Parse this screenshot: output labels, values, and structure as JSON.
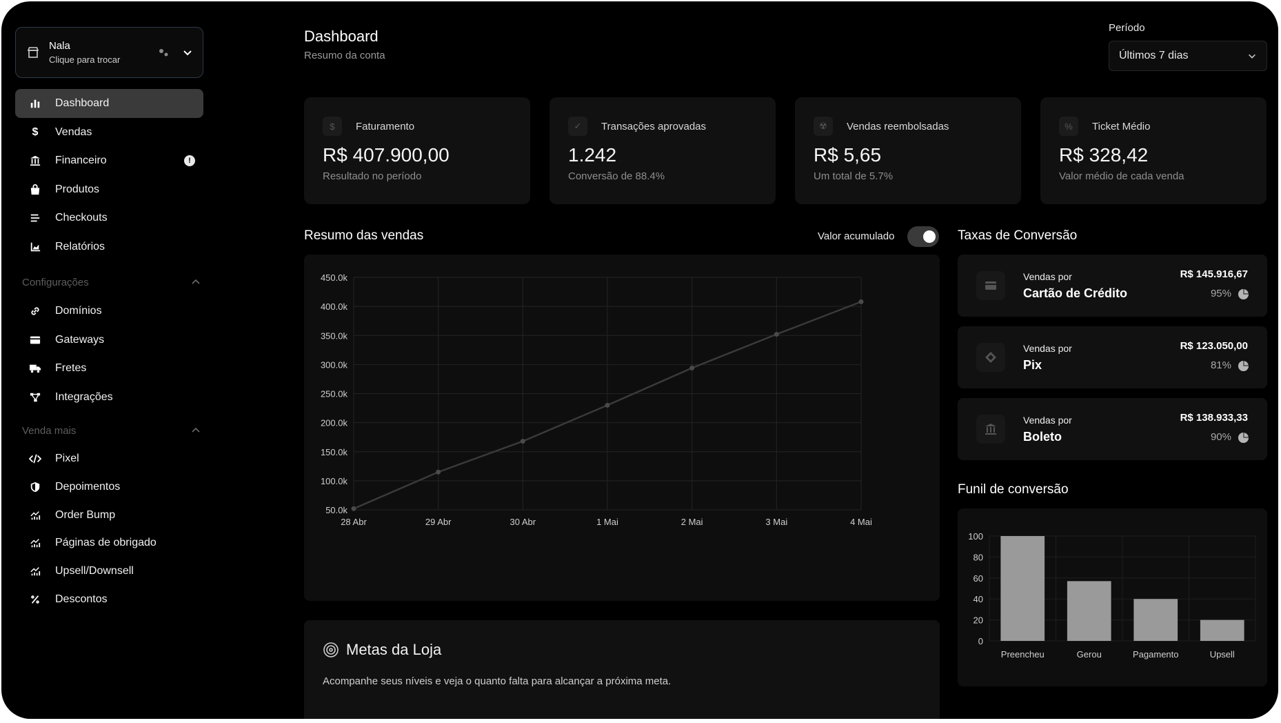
{
  "store": {
    "name": "Nala",
    "hint": "Clique para trocar"
  },
  "nav": {
    "main": [
      {
        "label": "Dashboard",
        "icon": "bar-chart-icon",
        "active": true
      },
      {
        "label": "Vendas",
        "icon": "dollar-icon"
      },
      {
        "label": "Financeiro",
        "icon": "bank-icon",
        "badge": "!"
      },
      {
        "label": "Produtos",
        "icon": "bag-icon"
      },
      {
        "label": "Checkouts",
        "icon": "list-icon"
      },
      {
        "label": "Relatórios",
        "icon": "area-chart-icon"
      }
    ],
    "config_title": "Configurações",
    "config": [
      {
        "label": "Domínios",
        "icon": "link-icon"
      },
      {
        "label": "Gateways",
        "icon": "card-icon"
      },
      {
        "label": "Fretes",
        "icon": "truck-icon"
      },
      {
        "label": "Integrações",
        "icon": "integration-icon"
      }
    ],
    "sell_title": "Venda mais",
    "sell": [
      {
        "label": "Pixel",
        "icon": "code-icon"
      },
      {
        "label": "Depoimentos",
        "icon": "shield-icon"
      },
      {
        "label": "Order Bump",
        "icon": "growth-icon"
      },
      {
        "label": "Páginas de obrigado",
        "icon": "growth-icon"
      },
      {
        "label": "Upsell/Downsell",
        "icon": "growth-icon"
      },
      {
        "label": "Descontos",
        "icon": "percent-icon"
      }
    ]
  },
  "header": {
    "title": "Dashboard",
    "subtitle": "Resumo da conta"
  },
  "period": {
    "label": "Período",
    "value": "Últimos 7 dias"
  },
  "stats": [
    {
      "label": "Faturamento",
      "value": "R$ 407.900,00",
      "sub": "Resultado no período",
      "icon": "$"
    },
    {
      "label": "Transações aprovadas",
      "value": "1.242",
      "sub": "Conversão de 88.4%",
      "icon": "✓"
    },
    {
      "label": "Vendas reembolsadas",
      "value": "R$ 5,65",
      "sub": "Um total de 5.7%",
      "icon": "☢"
    },
    {
      "label": "Ticket Médio",
      "value": "R$ 328,42",
      "sub": "Valor médio de cada venda",
      "icon": "%"
    }
  ],
  "sales_summary": {
    "title": "Resumo das vendas",
    "toggle_label": "Valor acumulado",
    "toggle_on": true
  },
  "chart_data": [
    {
      "type": "line",
      "categories": [
        "28 Abr",
        "29 Abr",
        "30 Abr",
        "1 Mai",
        "2 Mai",
        "3 Mai",
        "4 Mai"
      ],
      "values": [
        52000,
        115000,
        168000,
        230000,
        294000,
        352000,
        408000
      ],
      "ylim": [
        50000,
        450000
      ],
      "yticks": [
        "50.0k",
        "100.0k",
        "150.0k",
        "200.0k",
        "250.0k",
        "300.0k",
        "350.0k",
        "400.0k",
        "450.0k"
      ],
      "grid": true
    },
    {
      "type": "bar",
      "categories": [
        "Preencheu",
        "Gerou",
        "Pagamento",
        "Upsell"
      ],
      "values": [
        100,
        57,
        40,
        20
      ],
      "ylim": [
        0,
        100
      ],
      "yticks": [
        "0",
        "20",
        "40",
        "60",
        "80",
        "100"
      ],
      "grid": true
    }
  ],
  "conversion": {
    "title": "Taxas de Conversão",
    "items": [
      {
        "label": "Vendas por",
        "method": "Cartão de Crédito",
        "amount": "R$ 145.916,67",
        "pct": "95%",
        "icon": "card-icon"
      },
      {
        "label": "Vendas por",
        "method": "Pix",
        "amount": "R$ 123.050,00",
        "pct": "81%",
        "icon": "pix-icon"
      },
      {
        "label": "Vendas por",
        "method": "Boleto",
        "amount": "R$ 138.933,33",
        "pct": "90%",
        "icon": "bank-icon"
      }
    ]
  },
  "funnel": {
    "title": "Funil de conversão"
  },
  "goals": {
    "title": "Metas da Loja",
    "description": "Acompanhe seus níveis e veja o quanto falta para alcançar a próxima meta."
  },
  "colors": {
    "background": "#000000",
    "card": "#111111",
    "bar": "#9a9a9a",
    "line": "#3a3a3a"
  }
}
